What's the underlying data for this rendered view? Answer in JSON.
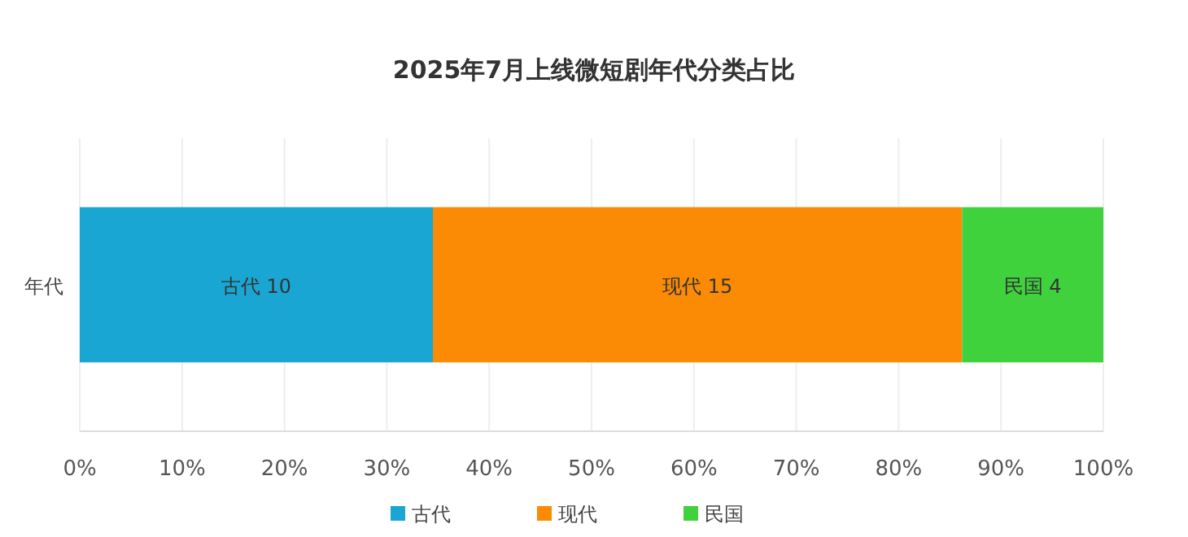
{
  "chart_data": {
    "type": "bar",
    "orientation": "horizontal",
    "stacked": true,
    "title": "2025年7月上线微短剧年代分类占比",
    "categories": [
      "年代"
    ],
    "series": [
      {
        "name": "古代",
        "color": "#1aa6d2",
        "values": [
          34.5
        ],
        "value_labels": [
          "古代 10"
        ]
      },
      {
        "name": "现代",
        "color": "#fb8a05",
        "values": [
          51.7
        ],
        "value_labels": [
          "现代 15"
        ]
      },
      {
        "name": "民国",
        "color": "#3fd23c",
        "values": [
          13.8
        ],
        "value_labels": [
          "民国 4"
        ]
      }
    ],
    "xlim": [
      0,
      100
    ],
    "xticks": [
      {
        "value": 0,
        "label": "0%"
      },
      {
        "value": 10,
        "label": "10%"
      },
      {
        "value": 20,
        "label": "20%"
      },
      {
        "value": 30,
        "label": "30%"
      },
      {
        "value": 40,
        "label": "40%"
      },
      {
        "value": 50,
        "label": "50%"
      },
      {
        "value": 60,
        "label": "60%"
      },
      {
        "value": 70,
        "label": "70%"
      },
      {
        "value": 80,
        "label": "80%"
      },
      {
        "value": 90,
        "label": "90%"
      },
      {
        "value": 100,
        "label": "100%"
      }
    ],
    "grid": "x",
    "legend": "bottom"
  }
}
